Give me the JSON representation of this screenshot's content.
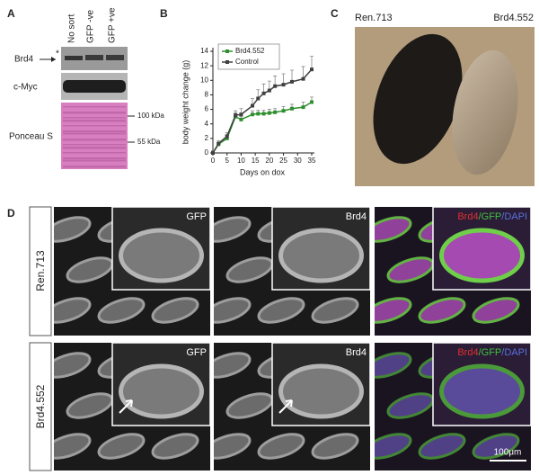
{
  "panel_labels": [
    "A",
    "B",
    "C",
    "D"
  ],
  "blot": {
    "lanes": [
      "No sort",
      "GFP -ve",
      "GFP +ve"
    ],
    "rows": [
      "Brd4",
      "c-Myc",
      "Ponceau S"
    ],
    "star": "*",
    "markers": [
      "100 kDa",
      "55 kDa"
    ]
  },
  "chart_data": {
    "type": "line",
    "xlabel": "Days on dox",
    "ylabel": "body weight change (g)",
    "x": [
      0,
      2,
      5,
      8,
      10,
      14,
      16,
      18,
      20,
      22,
      25,
      28,
      32,
      35
    ],
    "series": [
      {
        "name": "Brd4.552",
        "color": "#2f8f2f",
        "values": [
          0,
          1.2,
          2.0,
          5.0,
          4.6,
          5.3,
          5.4,
          5.4,
          5.5,
          5.6,
          5.8,
          6.1,
          6.3,
          7.0
        ],
        "errors": [
          0.2,
          0.3,
          0.4,
          0.5,
          0.4,
          0.5,
          0.5,
          0.5,
          0.5,
          0.5,
          0.6,
          0.6,
          0.7,
          0.7
        ]
      },
      {
        "name": "Control",
        "color": "#404040",
        "values": [
          0,
          1.3,
          2.3,
          5.2,
          5.3,
          6.5,
          7.5,
          8.2,
          8.6,
          9.2,
          9.4,
          9.8,
          10.2,
          11.5
        ],
        "errors": [
          0.3,
          0.4,
          0.5,
          0.6,
          0.8,
          1.0,
          1.2,
          1.3,
          1.3,
          1.4,
          1.5,
          1.6,
          1.7,
          1.8
        ]
      }
    ],
    "xlim": [
      0,
      35
    ],
    "ylim": [
      0,
      14
    ],
    "xticks": [
      0,
      5,
      10,
      15,
      20,
      25,
      30,
      35
    ],
    "yticks": [
      0,
      2,
      4,
      6,
      8,
      10,
      12,
      14
    ],
    "legend": "upper left"
  },
  "photo": {
    "labels": [
      "Ren.713",
      "Brd4.552"
    ]
  },
  "microscopy": {
    "rows": [
      "Ren.713",
      "Brd4.552"
    ],
    "channels": [
      "GFP",
      "Brd4"
    ],
    "merge": [
      "Brd4",
      "/GFP",
      "/DAPI"
    ],
    "scale_bar": "100μm"
  }
}
